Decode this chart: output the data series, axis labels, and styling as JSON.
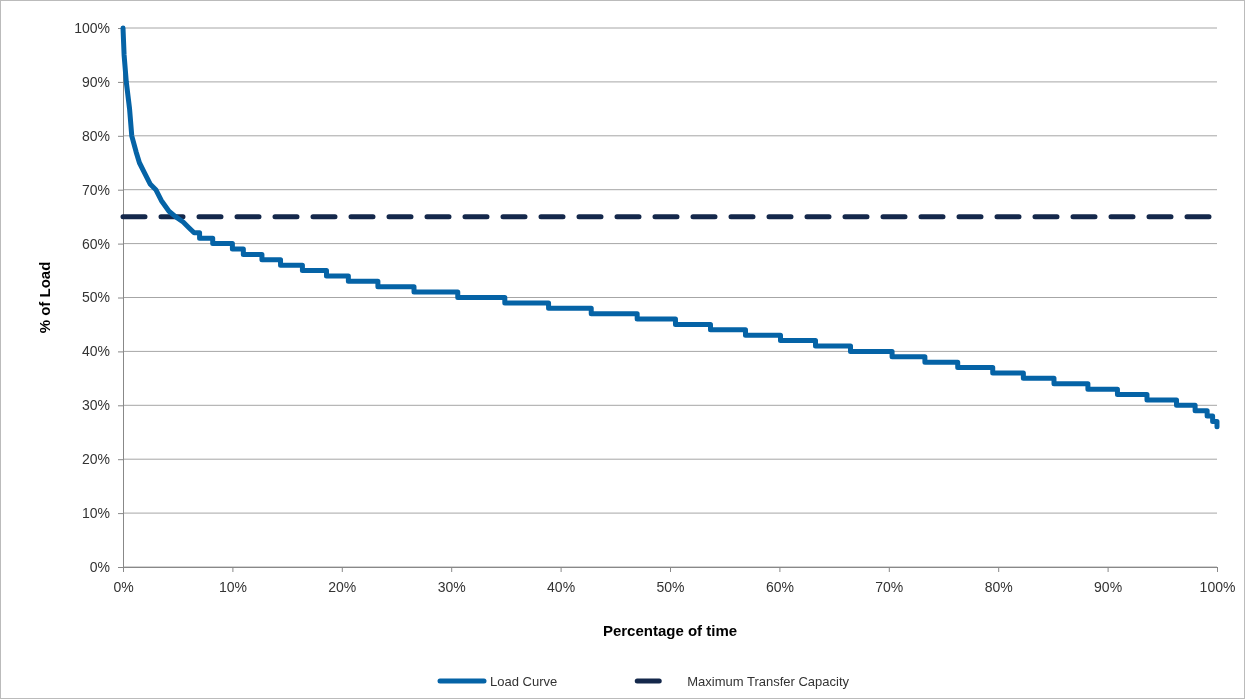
{
  "chart_data": {
    "type": "line",
    "xlabel": "Percentage of time",
    "ylabel": "% of Load",
    "xlim": [
      0,
      100
    ],
    "xticks": [
      {
        "value": 0,
        "label": "0%"
      },
      {
        "value": 10,
        "label": "10%"
      },
      {
        "value": 20,
        "label": "20%"
      },
      {
        "value": 30,
        "label": "30%"
      },
      {
        "value": 40,
        "label": "40%"
      },
      {
        "value": 50,
        "label": "50%"
      },
      {
        "value": 60,
        "label": "60%"
      },
      {
        "value": 70,
        "label": "70%"
      },
      {
        "value": 80,
        "label": "80%"
      },
      {
        "value": 90,
        "label": "90%"
      },
      {
        "value": 100,
        "label": "100%"
      }
    ],
    "ylim": [
      0,
      100
    ],
    "yticks": [
      {
        "value": 0,
        "label": "0%"
      },
      {
        "value": 10,
        "label": "10%"
      },
      {
        "value": 20,
        "label": "20%"
      },
      {
        "value": 30,
        "label": "30%"
      },
      {
        "value": 40,
        "label": "40%"
      },
      {
        "value": 50,
        "label": "50%"
      },
      {
        "value": 60,
        "label": "60%"
      },
      {
        "value": 70,
        "label": "70%"
      },
      {
        "value": 80,
        "label": "80%"
      },
      {
        "value": 90,
        "label": "90%"
      },
      {
        "value": 100,
        "label": "100%"
      }
    ],
    "grid": "y",
    "legend": "bottom",
    "marker": "none",
    "series": [
      {
        "name": "Load Curve",
        "color": "#0563a6",
        "line_style": "solid",
        "x": [
          0,
          0.1,
          0.3,
          0.6,
          0.8,
          1.2,
          1.5,
          2,
          2.5,
          3,
          3.5,
          4.2,
          4.8,
          5.5,
          6,
          6.5,
          7,
          7,
          8.2,
          8.2,
          10,
          10,
          11,
          11,
          12.7,
          12.7,
          14.4,
          14.4,
          16.4,
          16.4,
          18.6,
          18.6,
          20.6,
          20.6,
          23.3,
          23.3,
          26.6,
          26.6,
          30.6,
          30.6,
          34.9,
          34.9,
          38.9,
          38.9,
          42.8,
          42.8,
          47,
          47,
          50.5,
          50.5,
          53.7,
          53.7,
          56.9,
          56.9,
          60.1,
          60.1,
          63.3,
          63.3,
          66.5,
          66.5,
          70.3,
          70.3,
          73.3,
          73.3,
          76.3,
          76.3,
          79.5,
          79.5,
          82.3,
          82.3,
          85.1,
          85.1,
          88.2,
          88.2,
          90.9,
          90.9,
          93.6,
          93.6,
          96.3,
          96.3,
          98,
          98,
          99.1,
          99.1,
          99.6,
          99.6,
          100,
          100
        ],
        "values": [
          100,
          95,
          90,
          85,
          80,
          77,
          75,
          73,
          71,
          70,
          68,
          66,
          65,
          64,
          63,
          62,
          62,
          61,
          61,
          60,
          60,
          59,
          59,
          58,
          58,
          57,
          57,
          56,
          56,
          55,
          55,
          54,
          54,
          53,
          53,
          52,
          52,
          51,
          51,
          50,
          50,
          49,
          49,
          48,
          48,
          47,
          47,
          46,
          46,
          45,
          45,
          44,
          44,
          43,
          43,
          42,
          42,
          41,
          41,
          40,
          40,
          39,
          39,
          38,
          38,
          37,
          37,
          36,
          36,
          35,
          35,
          34,
          34,
          33,
          33,
          32,
          32,
          31,
          31,
          30,
          30,
          29,
          29,
          28,
          28,
          27,
          27,
          26
        ]
      },
      {
        "name": "Maximum Transfer Capacity",
        "color": "#14284b",
        "line_style": "dashed",
        "x": [
          0,
          100
        ],
        "values": [
          65,
          65
        ]
      }
    ]
  }
}
